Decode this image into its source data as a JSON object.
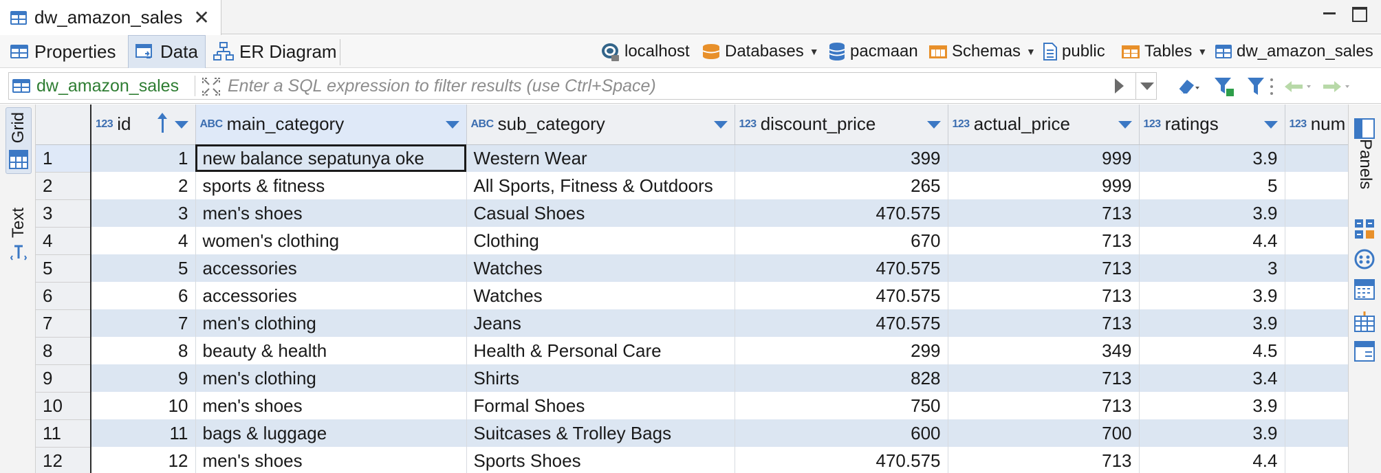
{
  "editor_tab": {
    "title": "dw_amazon_sales",
    "close_glyph": "✕"
  },
  "sub_tabs": [
    {
      "label": "Properties",
      "icon": "properties-icon"
    },
    {
      "label": "Data",
      "icon": "data-icon"
    },
    {
      "label": "ER Diagram",
      "icon": "er-diagram-icon"
    }
  ],
  "active_sub_tab": "Data",
  "breadcrumb": {
    "connection": "localhost",
    "databases": "Databases",
    "database": "pacmaan",
    "schemas": "Schemas",
    "schema": "public",
    "tables": "Tables",
    "table": "dw_amazon_sales"
  },
  "filter": {
    "table_name": "dw_amazon_sales",
    "placeholder": "Enter a SQL expression to filter results (use Ctrl+Space)"
  },
  "left_panel": {
    "grid_label": "Grid",
    "text_label": "Text"
  },
  "right_panel": {
    "panels_label": "Panels"
  },
  "columns": [
    {
      "type": "123",
      "name": "id",
      "sorted": true
    },
    {
      "type": "ABC",
      "name": "main_category"
    },
    {
      "type": "ABC",
      "name": "sub_category"
    },
    {
      "type": "123",
      "name": "discount_price"
    },
    {
      "type": "123",
      "name": "actual_price"
    },
    {
      "type": "123",
      "name": "ratings"
    },
    {
      "type": "123",
      "name": "num"
    }
  ],
  "rows": [
    {
      "n": "1",
      "id": "1",
      "main_category": "new balance sepatunya oke",
      "sub_category": "Western Wear",
      "discount_price": "399",
      "actual_price": "999",
      "ratings": "3.9"
    },
    {
      "n": "2",
      "id": "2",
      "main_category": "sports & fitness",
      "sub_category": "All Sports, Fitness & Outdoors",
      "discount_price": "265",
      "actual_price": "999",
      "ratings": "5"
    },
    {
      "n": "3",
      "id": "3",
      "main_category": "men's shoes",
      "sub_category": "Casual Shoes",
      "discount_price": "470.575",
      "actual_price": "713",
      "ratings": "3.9"
    },
    {
      "n": "4",
      "id": "4",
      "main_category": "women's clothing",
      "sub_category": "Clothing",
      "discount_price": "670",
      "actual_price": "713",
      "ratings": "4.4"
    },
    {
      "n": "5",
      "id": "5",
      "main_category": "accessories",
      "sub_category": "Watches",
      "discount_price": "470.575",
      "actual_price": "713",
      "ratings": "3"
    },
    {
      "n": "6",
      "id": "6",
      "main_category": "accessories",
      "sub_category": "Watches",
      "discount_price": "470.575",
      "actual_price": "713",
      "ratings": "3.9"
    },
    {
      "n": "7",
      "id": "7",
      "main_category": "men's clothing",
      "sub_category": "Jeans",
      "discount_price": "470.575",
      "actual_price": "713",
      "ratings": "3.9"
    },
    {
      "n": "8",
      "id": "8",
      "main_category": "beauty & health",
      "sub_category": "Health & Personal Care",
      "discount_price": "299",
      "actual_price": "349",
      "ratings": "4.5"
    },
    {
      "n": "9",
      "id": "9",
      "main_category": "men's clothing",
      "sub_category": "Shirts",
      "discount_price": "828",
      "actual_price": "713",
      "ratings": "3.4"
    },
    {
      "n": "10",
      "id": "10",
      "main_category": "men's shoes",
      "sub_category": "Formal Shoes",
      "discount_price": "750",
      "actual_price": "713",
      "ratings": "3.9"
    },
    {
      "n": "11",
      "id": "11",
      "main_category": "bags & luggage",
      "sub_category": "Suitcases & Trolley Bags",
      "discount_price": "600",
      "actual_price": "700",
      "ratings": "3.9"
    },
    {
      "n": "12",
      "id": "12",
      "main_category": "men's shoes",
      "sub_category": "Sports Shoes",
      "discount_price": "470.575",
      "actual_price": "713",
      "ratings": "4.4"
    }
  ],
  "colors": {
    "accent": "#3b78c4",
    "row_alt": "#dce6f2",
    "table_name_green": "#2e7d32",
    "orange_icon": "#e8902a"
  }
}
